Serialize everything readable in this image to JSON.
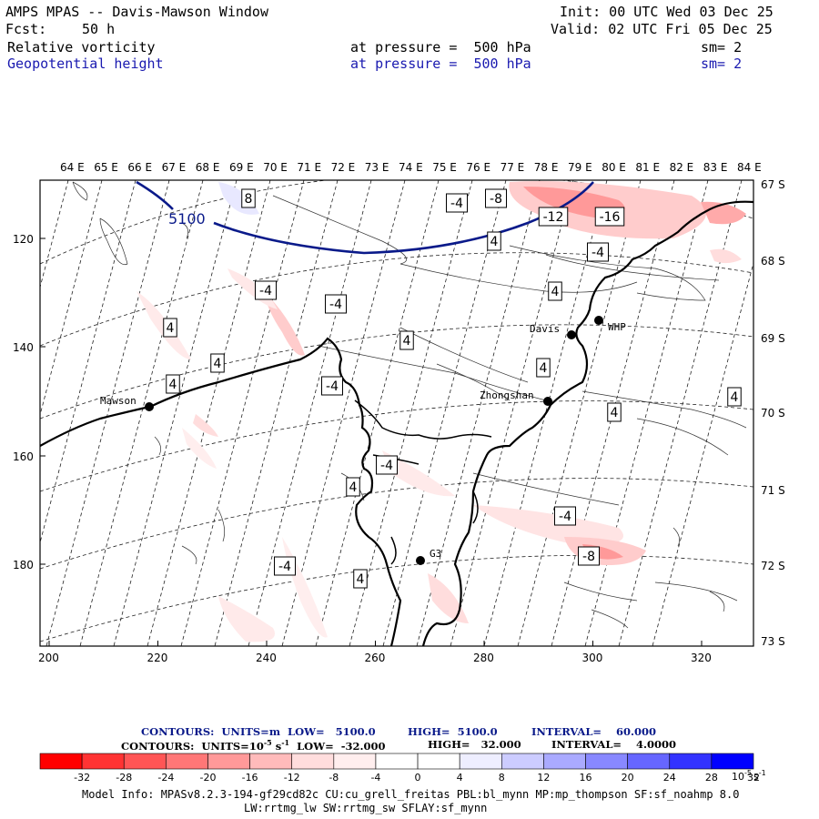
{
  "header": {
    "title": "AMPS MPAS -- Davis-Mawson Window",
    "init": "Init: 00 UTC Wed 03 Dec 25",
    "fcst_label": "Fcst:",
    "fcst_value": "50 h",
    "valid": "Valid: 02 UTC Fri 05 Dec 25",
    "field1_name": "Relative vorticity",
    "field1_level": "at pressure =  500 hPa",
    "field1_sm": "sm= 2",
    "field2_name": "Geopotential height",
    "field2_level": "at pressure =  500 hPa",
    "field2_sm": "sm= 2"
  },
  "map": {
    "top_lon_labels": [
      "64 E",
      "65 E",
      "66 E",
      "67 E",
      "68 E",
      "69 E",
      "70 E",
      "71 E",
      "72 E",
      "73 E",
      "74 E",
      "75 E",
      "76 E",
      "77 E",
      "78 E",
      "79 E",
      "80 E",
      "81 E",
      "82 E",
      "83 E",
      "84 E"
    ],
    "right_lat_labels": [
      "67 S",
      "68 S",
      "69 S",
      "70 S",
      "71 S",
      "72 S",
      "73 S"
    ],
    "left_y_labels": [
      "120",
      "140",
      "160",
      "180"
    ],
    "bottom_x_labels": [
      "200",
      "220",
      "240",
      "260",
      "280",
      "300",
      "320"
    ],
    "stations": [
      {
        "name": "Mawson"
      },
      {
        "name": "Davis"
      },
      {
        "name": "WHP"
      },
      {
        "name": "Zhongshan"
      },
      {
        "name": "G3"
      }
    ],
    "height_label": "5100",
    "vort_labels": [
      "8",
      "-4",
      "-8",
      "-12",
      "-16",
      "4",
      "-4",
      "4",
      "-4",
      "-4",
      "4",
      "4",
      "4",
      "-4",
      "4",
      "4",
      "-4",
      "4",
      "-4",
      "4",
      "-8",
      "-4",
      "4",
      "4"
    ]
  },
  "footer": {
    "line1_contours": "CONTOURS:  UNITS=m  LOW=   5100.0",
    "line1_high": "HIGH=  5100.0",
    "line1_interval": "INTERVAL=    60.000",
    "line2_contours": "CONTOURS:  UNITS=10",
    "line2_exp": "-5",
    "line2_s": " s",
    "line2_exp2": "-1",
    "line2_low": "  LOW=  -32.000",
    "line2_high": "HIGH=   32.000",
    "line2_interval": "INTERVAL=    4.0000",
    "colorbar_ticks": [
      "-32",
      "-28",
      "-24",
      "-20",
      "-16",
      "-12",
      "-8",
      "-4",
      "0",
      "4",
      "8",
      "12",
      "16",
      "20",
      "24",
      "28",
      "32"
    ],
    "colorbar_units": "10",
    "colorbar_units_exp": "-5",
    "colorbar_units_s": "s",
    "colorbar_units_exp2": "-1",
    "colorbar_colors": [
      "#ff0000",
      "#ff3333",
      "#ff5555",
      "#ff7777",
      "#ff9999",
      "#ffbbbb",
      "#ffdddd",
      "#ffeeee",
      "#ffffff",
      "#ffffff",
      "#eeeeff",
      "#ccccff",
      "#aaaaff",
      "#8888ff",
      "#6666ff",
      "#3333ff",
      "#0000ff"
    ],
    "model_info1": "Model Info: MPASv8.2.3-194-gf29cd82c CU:cu_grell_freitas PBL:bl_mynn MP:mp_thompson SF:sf_noahmp 8.0",
    "model_info2": "LW:rrtmg_lw SW:rrtmg_sw SFLAY:sf_mynn"
  }
}
